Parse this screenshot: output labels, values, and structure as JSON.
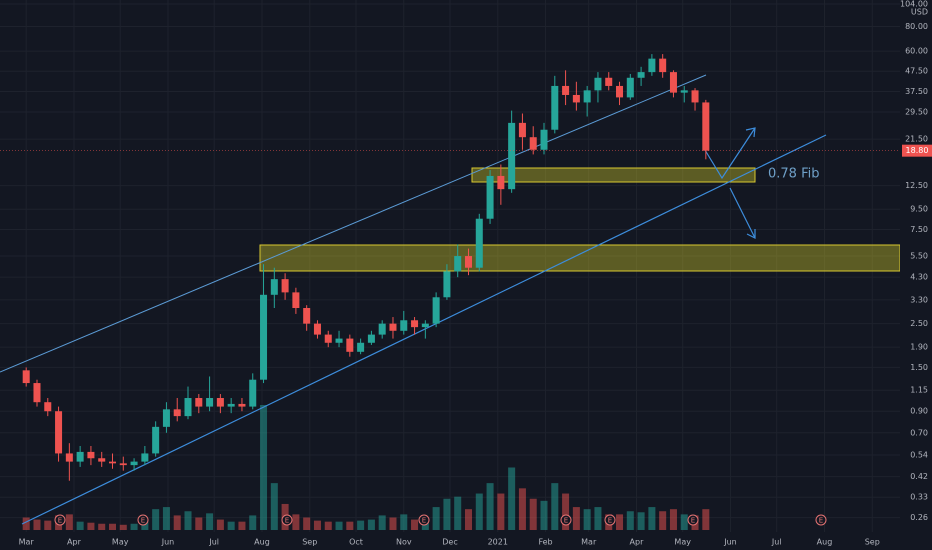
{
  "chart_data": {
    "type": "candlestick",
    "currency": "USD",
    "annotation": "0.78 Fib",
    "last_price_label": "18.80",
    "earnings_markers": [
      "E",
      "E",
      "E",
      "E",
      "E",
      "E",
      "E",
      "E"
    ],
    "log_scale": true,
    "grid": true,
    "up_color": "#26a69a",
    "down_color": "#ef5350",
    "x": [
      0,
      7,
      14,
      21,
      28,
      35,
      42,
      49,
      56,
      63,
      70,
      77,
      84,
      91,
      98,
      105,
      112,
      119,
      126,
      133,
      140,
      147,
      154,
      161,
      168,
      175,
      182,
      189,
      196,
      203,
      210,
      217,
      224,
      231,
      238,
      245,
      252,
      259,
      266,
      273,
      280,
      287,
      294,
      301,
      308,
      315,
      322,
      329,
      336,
      343,
      350,
      357,
      364,
      371,
      378,
      385,
      392,
      399,
      406,
      413,
      420,
      427,
      434,
      441
    ],
    "open": [
      1.45,
      1.25,
      1.0,
      0.9,
      0.55,
      0.5,
      0.56,
      0.52,
      0.5,
      0.49,
      0.48,
      0.5,
      0.55,
      0.75,
      0.92,
      0.85,
      1.05,
      0.95,
      1.05,
      0.95,
      0.98,
      0.95,
      1.3,
      3.5,
      4.2,
      3.6,
      3.0,
      2.5,
      2.2,
      2.0,
      2.1,
      1.8,
      2.0,
      2.2,
      2.5,
      2.3,
      2.6,
      2.4,
      2.5,
      3.4,
      4.6,
      5.5,
      4.8,
      8.5,
      14,
      12,
      26,
      22,
      19,
      24,
      40,
      36,
      33,
      38,
      44,
      40,
      35,
      44,
      47,
      55,
      47,
      37,
      38,
      33
    ],
    "high": [
      1.5,
      1.3,
      1.05,
      0.95,
      0.62,
      0.6,
      0.6,
      0.56,
      0.55,
      0.53,
      0.52,
      0.6,
      0.8,
      1.0,
      1.05,
      1.2,
      1.1,
      1.35,
      1.1,
      1.05,
      1.05,
      1.4,
      5.0,
      4.8,
      4.5,
      3.8,
      3.1,
      2.6,
      2.3,
      2.3,
      2.2,
      2.1,
      2.3,
      2.6,
      2.7,
      2.9,
      2.7,
      2.6,
      3.6,
      5.0,
      6.3,
      6.0,
      9.0,
      15,
      16,
      30,
      29,
      25,
      26,
      45,
      48,
      42,
      40,
      47,
      47,
      42,
      46,
      50,
      58,
      58,
      48,
      40,
      39,
      34
    ],
    "low": [
      1.2,
      0.95,
      0.85,
      0.5,
      0.4,
      0.47,
      0.48,
      0.47,
      0.46,
      0.45,
      0.45,
      0.48,
      0.53,
      0.7,
      0.8,
      0.82,
      0.88,
      0.9,
      0.88,
      0.88,
      0.9,
      0.92,
      1.25,
      3.0,
      3.3,
      2.8,
      2.3,
      2.1,
      1.9,
      1.9,
      1.7,
      1.75,
      1.95,
      2.1,
      2.1,
      2.2,
      2.2,
      2.1,
      2.4,
      3.3,
      4.3,
      4.4,
      4.6,
      8.0,
      10,
      11.5,
      19,
      18,
      18,
      23,
      32,
      30,
      28,
      33,
      38,
      32,
      34,
      40,
      45,
      44,
      35,
      33,
      30,
      17
    ],
    "close": [
      1.25,
      1.0,
      0.9,
      0.55,
      0.5,
      0.56,
      0.52,
      0.5,
      0.49,
      0.48,
      0.5,
      0.55,
      0.75,
      0.92,
      0.85,
      1.05,
      0.95,
      1.05,
      0.95,
      0.98,
      0.95,
      1.3,
      3.5,
      4.2,
      3.6,
      3.0,
      2.5,
      2.2,
      2.0,
      2.1,
      1.8,
      2.0,
      2.2,
      2.5,
      2.3,
      2.6,
      2.4,
      2.5,
      3.4,
      4.6,
      5.5,
      4.8,
      8.5,
      14,
      12,
      26,
      22,
      19,
      24,
      40,
      36,
      33,
      38,
      44,
      40,
      35,
      44,
      47,
      55,
      47,
      37,
      38,
      33,
      18.8
    ],
    "volume": [
      12,
      10,
      9,
      14,
      15,
      8,
      7,
      6,
      6,
      5,
      6,
      8,
      20,
      22,
      14,
      18,
      12,
      16,
      10,
      8,
      8,
      14,
      120,
      45,
      25,
      15,
      12,
      9,
      8,
      8,
      8,
      9,
      10,
      14,
      12,
      15,
      10,
      10,
      22,
      30,
      32,
      20,
      35,
      45,
      35,
      60,
      40,
      30,
      28,
      45,
      35,
      22,
      20,
      22,
      15,
      15,
      18,
      17,
      22,
      18,
      20,
      15,
      14,
      20
    ],
    "xlim": [
      -17,
      567
    ],
    "xticks": [
      {
        "value": 0,
        "label": "Mar"
      },
      {
        "value": 31,
        "label": "Apr"
      },
      {
        "value": 61,
        "label": "May"
      },
      {
        "value": 92,
        "label": "Jun"
      },
      {
        "value": 122,
        "label": "Jul"
      },
      {
        "value": 153,
        "label": "Aug"
      },
      {
        "value": 184,
        "label": "Sep"
      },
      {
        "value": 214,
        "label": "Oct"
      },
      {
        "value": 245,
        "label": "Nov"
      },
      {
        "value": 275,
        "label": "Dec"
      },
      {
        "value": 306,
        "label": "2021"
      },
      {
        "value": 337,
        "label": "Feb"
      },
      {
        "value": 365,
        "label": "Mar"
      },
      {
        "value": 396,
        "label": "Apr"
      },
      {
        "value": 426,
        "label": "May"
      },
      {
        "value": 457,
        "label": "Jun"
      },
      {
        "value": 487,
        "label": "Jul"
      },
      {
        "value": 518,
        "label": "Aug"
      },
      {
        "value": 549,
        "label": "Sep"
      }
    ],
    "ylim": [
      0.22,
      109
    ],
    "yticks": [
      {
        "value": 0.26,
        "label": "0.26"
      },
      {
        "value": 0.33,
        "label": "0.33"
      },
      {
        "value": 0.42,
        "label": "0.42"
      },
      {
        "value": 0.54,
        "label": "0.54"
      },
      {
        "value": 0.7,
        "label": "0.70"
      },
      {
        "value": 0.9,
        "label": "0.90"
      },
      {
        "value": 1.15,
        "label": "1.15"
      },
      {
        "value": 1.5,
        "label": "1.50"
      },
      {
        "value": 1.9,
        "label": "1.90"
      },
      {
        "value": 2.5,
        "label": "2.50"
      },
      {
        "value": 3.3,
        "label": "3.30"
      },
      {
        "value": 4.3,
        "label": "4.30"
      },
      {
        "value": 5.5,
        "label": "5.50"
      },
      {
        "value": 7.5,
        "label": "7.50"
      },
      {
        "value": 9.5,
        "label": "9.50"
      },
      {
        "value": 12.5,
        "label": "12.50"
      },
      {
        "value": 21.5,
        "label": "21.50"
      },
      {
        "value": 29.5,
        "label": "29.50"
      },
      {
        "value": 37.5,
        "label": "37.50"
      },
      {
        "value": 47.5,
        "label": "47.50"
      },
      {
        "value": 60,
        "label": "60.00"
      },
      {
        "value": 80,
        "label": "80.00"
      },
      {
        "value": 104,
        "label": "104.00"
      }
    ]
  }
}
